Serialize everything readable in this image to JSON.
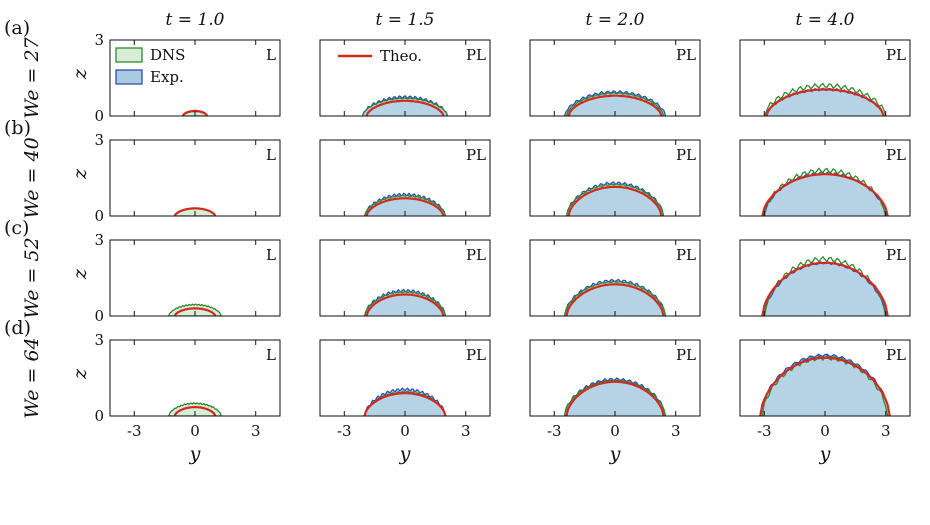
{
  "chart_data": {
    "type": "area",
    "column_titles": [
      "t = 1.0",
      "t = 1.5",
      "t = 2.0",
      "t = 4.0"
    ],
    "row_labels": [
      "(a)",
      "(b)",
      "(c)",
      "(d)"
    ],
    "row_We": [
      "We = 27",
      "We = 40",
      "We = 52",
      "We = 64"
    ],
    "xlabel": "y",
    "ylabel": "z",
    "xlim": [
      -4.2,
      4.2
    ],
    "ylim": [
      0,
      3
    ],
    "xticks": [
      "-3",
      "0",
      "3"
    ],
    "yticks": [
      "0",
      "3"
    ],
    "legend": [
      {
        "name": "DNS",
        "color": "#2e8b2e",
        "fill": "#d8ecd8"
      },
      {
        "name": "Exp.",
        "color": "#2d4fb5",
        "fill": "#a9cbe0"
      },
      {
        "name": "Theo.",
        "color": "#d42a1e"
      }
    ],
    "regimes": [
      [
        "L",
        "PL",
        "PL",
        "PL"
      ],
      [
        "L",
        "PL",
        "PL",
        "PL"
      ],
      [
        "L",
        "PL",
        "PL",
        "PL"
      ],
      [
        "L",
        "PL",
        "PL",
        "PL"
      ]
    ],
    "panels": [
      [
        {
          "theo": [
            0.6,
            0.2
          ],
          "dns": [
            0.6,
            0.18
          ],
          "exp": null
        },
        {
          "theo": [
            1.9,
            0.6
          ],
          "dns": [
            2.1,
            0.7
          ],
          "exp": [
            2.1,
            0.75
          ]
        },
        {
          "theo": [
            2.3,
            0.8
          ],
          "dns": [
            2.4,
            0.9
          ],
          "exp": [
            2.5,
            0.95
          ]
        },
        {
          "theo": [
            2.9,
            1.05
          ],
          "dns": [
            3.0,
            1.2
          ],
          "exp": [
            2.9,
            1.05
          ]
        }
      ],
      [
        {
          "theo": [
            1.0,
            0.3
          ],
          "dns": [
            1.0,
            0.3
          ],
          "exp": null
        },
        {
          "theo": [
            1.9,
            0.7
          ],
          "dns": [
            2.0,
            0.8
          ],
          "exp": [
            2.0,
            0.85
          ]
        },
        {
          "theo": [
            2.3,
            1.15
          ],
          "dns": [
            2.4,
            1.25
          ],
          "exp": [
            2.4,
            1.3
          ]
        },
        {
          "theo": [
            3.1,
            1.65
          ],
          "dns": [
            3.0,
            1.8
          ],
          "exp": [
            3.0,
            1.7
          ]
        }
      ],
      [
        {
          "theo": [
            1.0,
            0.3
          ],
          "dns": [
            1.3,
            0.45
          ],
          "exp": null
        },
        {
          "theo": [
            1.9,
            0.85
          ],
          "dns": [
            2.0,
            0.95
          ],
          "exp": [
            2.0,
            1.0
          ]
        },
        {
          "theo": [
            2.4,
            1.25
          ],
          "dns": [
            2.5,
            1.35
          ],
          "exp": [
            2.5,
            1.4
          ]
        },
        {
          "theo": [
            3.1,
            2.1
          ],
          "dns": [
            3.0,
            2.25
          ],
          "exp": [
            3.0,
            2.1
          ]
        }
      ],
      [
        {
          "theo": [
            1.0,
            0.35
          ],
          "dns": [
            1.3,
            0.5
          ],
          "exp": null
        },
        {
          "theo": [
            2.0,
            0.9
          ],
          "dns": [
            2.0,
            0.95
          ],
          "exp": [
            2.0,
            1.05
          ]
        },
        {
          "theo": [
            2.4,
            1.35
          ],
          "dns": [
            2.5,
            1.4
          ],
          "exp": [
            2.5,
            1.45
          ]
        },
        {
          "theo": [
            3.2,
            2.3
          ],
          "dns": [
            3.1,
            2.3
          ],
          "exp": [
            3.2,
            2.4
          ]
        }
      ]
    ]
  }
}
